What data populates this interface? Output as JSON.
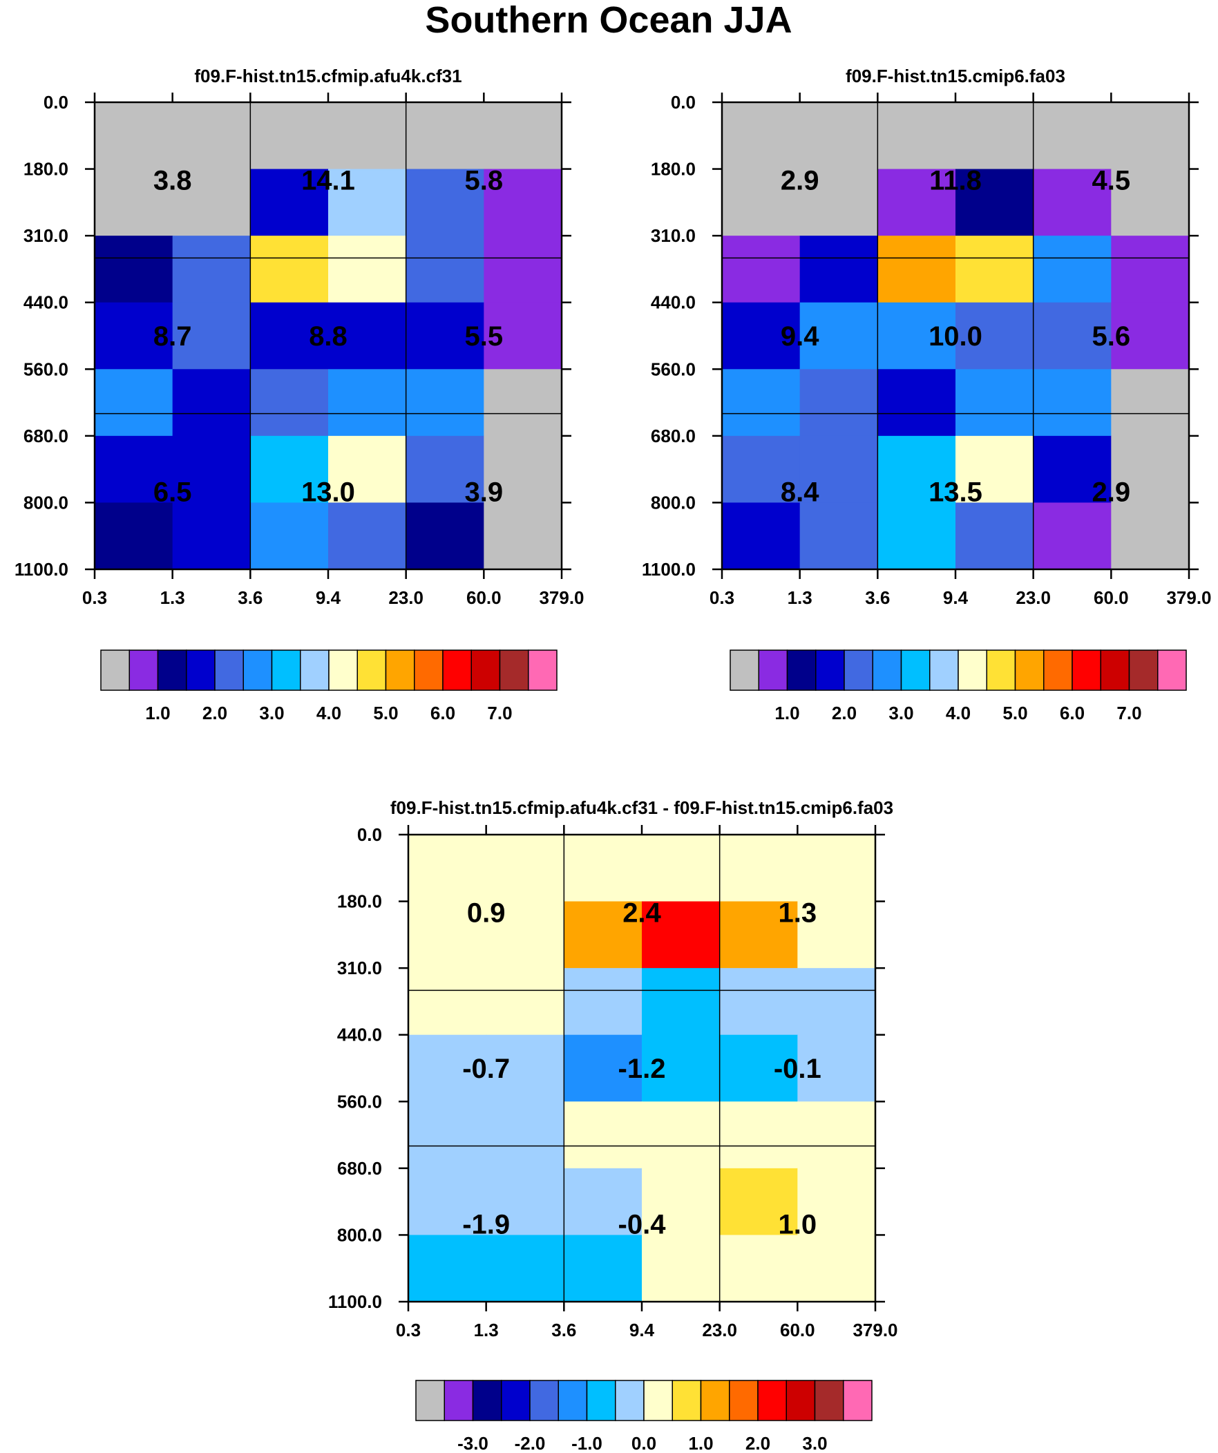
{
  "figure_title": "Southern Ocean JJA",
  "colors": {
    "palette": [
      "#c0c0c0",
      "#8a2be2",
      "#00008b",
      "#0000cd",
      "#4169e1",
      "#1e90ff",
      "#00bfff",
      "#a0d0ff",
      "#ffffcc",
      "#ffe135",
      "#ffa500",
      "#ff6a00",
      "#ff0000",
      "#cd0000",
      "#a52a2a",
      "#ff69b4"
    ]
  },
  "chart_data": [
    {
      "type": "heatmap",
      "title": "f09.F-hist.tn15.cfmip.afu4k.cf31",
      "x_tick_labels": [
        "0.3",
        "1.3",
        "3.6",
        "9.4",
        "23.0",
        "60.0",
        "379.0"
      ],
      "y_tick_labels": [
        "0.0",
        "180.0",
        "310.0",
        "440.0",
        "560.0",
        "680.0",
        "800.0",
        "1100.0"
      ],
      "cell_color_index": [
        [
          0,
          0,
          0,
          0,
          0,
          0
        ],
        [
          0,
          0,
          3,
          7,
          4,
          1
        ],
        [
          2,
          4,
          9,
          8,
          4,
          1
        ],
        [
          3,
          4,
          3,
          3,
          3,
          1
        ],
        [
          5,
          3,
          4,
          5,
          5,
          0
        ],
        [
          3,
          3,
          6,
          8,
          4,
          0
        ],
        [
          2,
          3,
          5,
          4,
          2,
          0
        ]
      ],
      "block_values": [
        [
          "3.8",
          "14.1",
          "5.8"
        ],
        [
          "8.7",
          "8.8",
          "5.5"
        ],
        [
          "6.5",
          "13.0",
          "3.9"
        ]
      ],
      "colorbar_labels": [
        "1.0",
        "2.0",
        "3.0",
        "4.0",
        "5.0",
        "6.0",
        "7.0"
      ]
    },
    {
      "type": "heatmap",
      "title": "f09.F-hist.tn15.cmip6.fa03",
      "x_tick_labels": [
        "0.3",
        "1.3",
        "3.6",
        "9.4",
        "23.0",
        "60.0",
        "379.0"
      ],
      "y_tick_labels": [
        "0.0",
        "180.0",
        "310.0",
        "440.0",
        "560.0",
        "680.0",
        "800.0",
        "1100.0"
      ],
      "cell_color_index": [
        [
          0,
          0,
          0,
          0,
          0,
          0
        ],
        [
          0,
          0,
          1,
          2,
          1,
          0
        ],
        [
          1,
          3,
          10,
          9,
          5,
          1
        ],
        [
          3,
          5,
          5,
          4,
          4,
          1
        ],
        [
          5,
          4,
          3,
          5,
          5,
          0
        ],
        [
          4,
          4,
          6,
          8,
          3,
          0
        ],
        [
          3,
          4,
          6,
          4,
          1,
          0
        ]
      ],
      "block_values": [
        [
          "2.9",
          "11.8",
          "4.5"
        ],
        [
          "9.4",
          "10.0",
          "5.6"
        ],
        [
          "8.4",
          "13.5",
          "2.9"
        ]
      ],
      "colorbar_labels": [
        "1.0",
        "2.0",
        "3.0",
        "4.0",
        "5.0",
        "6.0",
        "7.0"
      ]
    },
    {
      "type": "heatmap",
      "title": "f09.F-hist.tn15.cfmip.afu4k.cf31 - f09.F-hist.tn15.cmip6.fa03",
      "x_tick_labels": [
        "0.3",
        "1.3",
        "3.6",
        "9.4",
        "23.0",
        "60.0",
        "379.0"
      ],
      "y_tick_labels": [
        "0.0",
        "180.0",
        "310.0",
        "440.0",
        "560.0",
        "680.0",
        "800.0",
        "1100.0"
      ],
      "cell_color_index": [
        [
          8,
          8,
          8,
          8,
          8,
          8
        ],
        [
          8,
          8,
          10,
          12,
          10,
          8
        ],
        [
          8,
          8,
          7,
          6,
          7,
          7
        ],
        [
          7,
          7,
          5,
          6,
          6,
          7
        ],
        [
          7,
          7,
          8,
          8,
          8,
          8
        ],
        [
          7,
          7,
          7,
          8,
          9,
          8
        ],
        [
          6,
          6,
          6,
          8,
          8,
          8
        ]
      ],
      "block_values": [
        [
          "0.9",
          "2.4",
          "1.3"
        ],
        [
          "-0.7",
          "-1.2",
          "-0.1"
        ],
        [
          "-1.9",
          "-0.4",
          "1.0"
        ]
      ],
      "colorbar_labels": [
        "-3.0",
        "-2.0",
        "-1.0",
        "0.0",
        "1.0",
        "2.0",
        "3.0"
      ]
    }
  ]
}
